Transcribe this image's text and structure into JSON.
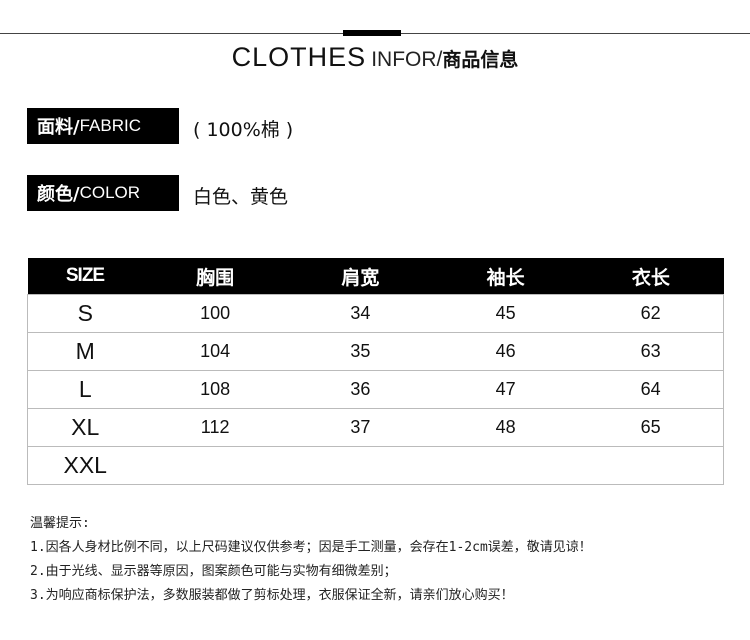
{
  "header": {
    "title_en": "CLOTHES",
    "title_sub": "INFOR/",
    "title_cn": "商品信息"
  },
  "fabric": {
    "label_cn": "面料/",
    "label_en": "FABRIC",
    "value": "( 100%棉 )"
  },
  "color": {
    "label_cn": "颜色/",
    "label_en": "COLOR",
    "value": "白色、黄色"
  },
  "size_table": {
    "headers": [
      "SIZE",
      "胸围",
      "肩宽",
      "袖长",
      "衣长"
    ],
    "rows": [
      [
        "S",
        "100",
        "34",
        "45",
        "62"
      ],
      [
        "M",
        "104",
        "35",
        "46",
        "63"
      ],
      [
        "L",
        "108",
        "36",
        "47",
        "64"
      ],
      [
        "XL",
        "112",
        "37",
        "48",
        "65"
      ],
      [
        "XXL",
        "",
        "",
        "",
        ""
      ]
    ]
  },
  "notes": {
    "title": "温馨提示:",
    "items": [
      "1.因各人身材比例不同，以上尺码建议仅供参考；因是手工测量，会存在1-2cm误差，敬请见谅！",
      "2.由于光线、显示器等原因，图案颜色可能与实物有细微差别；",
      "3.为响应商标保护法，多数服装都做了剪标处理，衣服保证全新，请亲们放心购买！"
    ]
  }
}
